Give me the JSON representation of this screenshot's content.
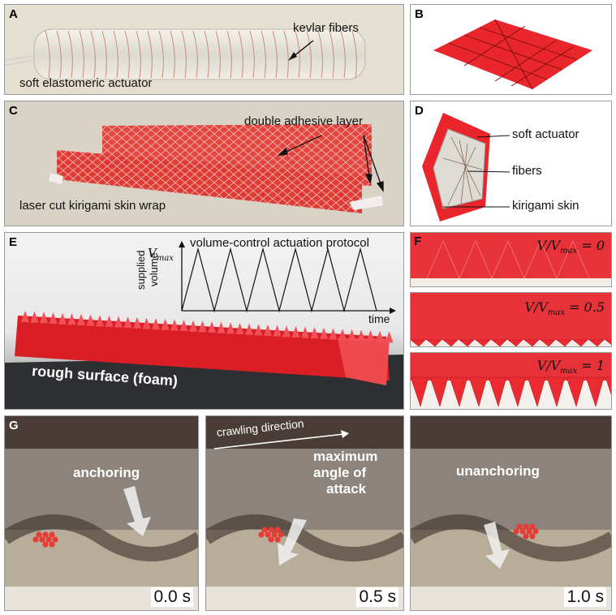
{
  "figure": {
    "panel_A": {
      "label": "A",
      "annotation_fibers": "kevlar fibers",
      "caption": "soft elastomeric actuator"
    },
    "panel_B": {
      "label": "B"
    },
    "panel_C": {
      "label": "C",
      "annotation_adhesive": "double adhesive layer",
      "caption": "laser cut kirigami skin wrap"
    },
    "panel_D": {
      "label": "D",
      "annotations": [
        "soft actuator",
        "fibers",
        "kirigami skin"
      ]
    },
    "panel_E": {
      "label": "E",
      "inset_title": "volume-control actuation protocol",
      "y_label_line1": "supplied",
      "y_label_line2": "volume",
      "y_max_symbol": "V",
      "y_max_sub": "max",
      "x_label": "time",
      "surface_label": "rough surface (foam)"
    },
    "panel_F": {
      "label": "F",
      "states": [
        {
          "lhs": "V/V",
          "sub": "max",
          "value": " = 0"
        },
        {
          "lhs": "V/V",
          "sub": "max",
          "value": " = 0.5"
        },
        {
          "lhs": "V/V",
          "sub": "max",
          "value": " = 1"
        }
      ]
    },
    "panel_G": {
      "label": "G",
      "direction_label": "crawling direction",
      "frames": [
        {
          "phase_label": "anchoring",
          "time": "0.0 s"
        },
        {
          "phase_line1": "maximum",
          "phase_line2": "angle of",
          "phase_line3": "attack",
          "time": "0.5 s"
        },
        {
          "phase_label": "unanchoring",
          "time": "1.0 s"
        }
      ]
    },
    "colors": {
      "kirigami_red": "#e8262b",
      "foam_gray": "#2e2f33",
      "snake_background": "#8a7468",
      "scale_highlight": "#e63b36"
    }
  }
}
